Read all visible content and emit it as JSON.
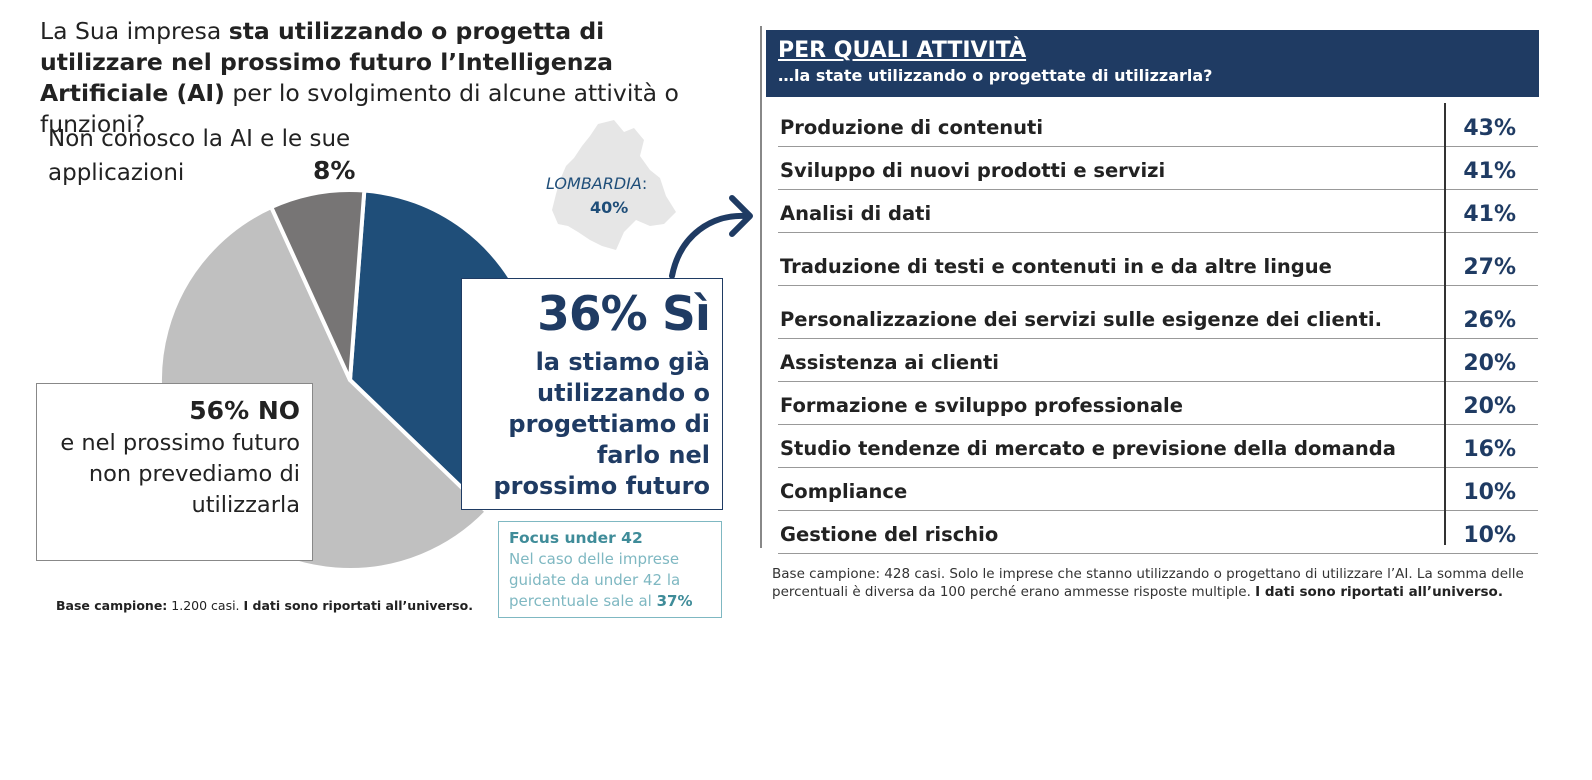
{
  "question": {
    "part1": "La Sua impresa ",
    "bold": "sta utilizzando o progetta di utilizzare nel prossimo futuro l’Intelligenza Artificiale (AI)",
    "part2": " per lo svolgimento di alcune attività o funzioni?"
  },
  "chart_data": [
    {
      "type": "pie",
      "title": "",
      "slices": [
        {
          "label": "Sì",
          "value": 36,
          "color": "#1f4e79"
        },
        {
          "label": "NO",
          "value": 56,
          "color": "#c0c0c0"
        },
        {
          "label": "Non conosco la AI e le sue applicazioni",
          "value": 8,
          "color": "#777575"
        }
      ]
    },
    {
      "type": "table",
      "title": "PER QUALI ATTIVITÀ",
      "subtitle": "…la state utilizzando o progettate di utilizzarla?",
      "rows": [
        {
          "label": "Produzione di contenuti",
          "value": "43%"
        },
        {
          "label": "Sviluppo di nuovi prodotti e servizi",
          "value": "41%"
        },
        {
          "label": "Analisi di dati",
          "value": "41%"
        },
        {
          "label": "Traduzione di testi e contenuti in e da altre lingue",
          "value": "27%"
        },
        {
          "label": "Personalizzazione dei servizi sulle esigenze dei clienti.",
          "value": "26%"
        },
        {
          "label": "Assistenza ai clienti",
          "value": "20%"
        },
        {
          "label": "Formazione e sviluppo professionale",
          "value": "20%"
        },
        {
          "label": "Studio tendenze di mercato e previsione della domanda",
          "value": "16%"
        },
        {
          "label": "Compliance",
          "value": "10%"
        },
        {
          "label": "Gestione del rischio",
          "value": "10%"
        }
      ]
    }
  ],
  "labels": {
    "non_conosco": "Non conosco la AI e le sue applicazioni",
    "non_conosco_pct": "8%",
    "no_pct": "56% NO",
    "no_text": "e nel prossimo futuro non prevediamo di utilizzarla",
    "yes_pct": "36% Sì",
    "yes_text": "la stiamo già utilizzando o progettiamo di farlo nel prossimo futuro"
  },
  "lombardia": {
    "label": "LOMBARDIA",
    "colon": ":",
    "value": "40%"
  },
  "focus": {
    "title": "Focus under 42",
    "text": "Nel caso delle imprese guidate da under 42 la percentuale sale al ",
    "value": "37%"
  },
  "notes": {
    "left_bold1": "Base campione:",
    "left_text": " 1.200 casi. ",
    "left_bold2": "I dati sono riportati all’universo.",
    "right_text": "Base campione: 428 casi. Solo le imprese che stanno utilizzando o progettano di utilizzare l’AI. La somma delle percentuali è diversa da 100 perché erano ammesse risposte multiple. ",
    "right_bold": "I dati sono riportati all’universo."
  },
  "colors": {
    "navy": "#1f3b63",
    "yes": "#1f4e79",
    "no": "#c0c0c0",
    "dk": "#777575",
    "map": "#e6e6e6",
    "teal": "#7fb8c2"
  }
}
